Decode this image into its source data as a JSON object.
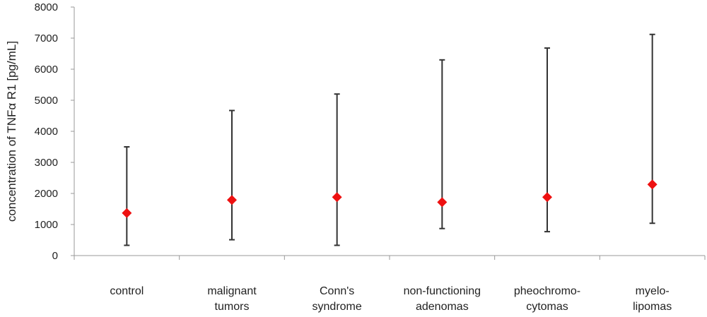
{
  "chart_data": {
    "type": "scatter",
    "title": "",
    "xlabel": "",
    "ylabel": "concentration of TNFα R1 [pg/mL]",
    "ylim": [
      0,
      8000
    ],
    "yticks": [
      0,
      1000,
      2000,
      3000,
      4000,
      5000,
      6000,
      7000,
      8000
    ],
    "grid": false,
    "categories": [
      [
        "control"
      ],
      [
        "malignant",
        "tumors"
      ],
      [
        "Conn's",
        "syndrome"
      ],
      [
        "non-functioning",
        "adenomas"
      ],
      [
        "pheochromo-",
        "cytomas"
      ],
      [
        "myelo-",
        "lipomas"
      ]
    ],
    "series": [
      {
        "marker": "diamond",
        "values": [
          1370,
          1790,
          1880,
          1720,
          1880,
          2290
        ],
        "range_low": [
          330,
          510,
          330,
          870,
          770,
          1040
        ],
        "range_high": [
          3500,
          4670,
          5200,
          6300,
          6680,
          7120
        ]
      }
    ],
    "colors": {
      "marker": "#ee1111",
      "whisker": "#333333",
      "axis": "#999999"
    }
  }
}
